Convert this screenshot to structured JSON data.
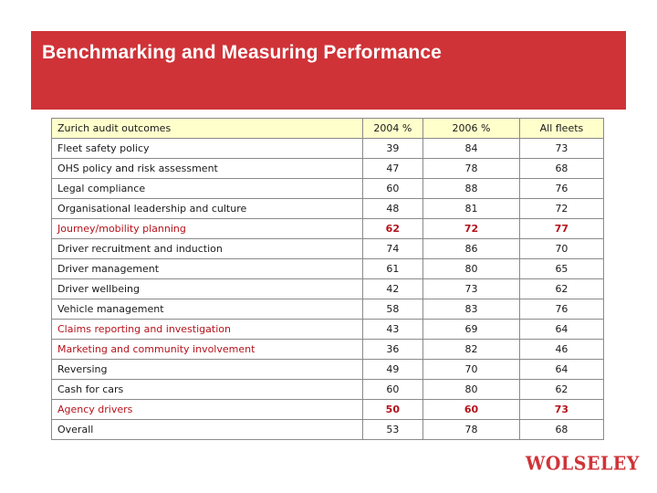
{
  "title": "Benchmarking and Measuring Performance",
  "table": {
    "headers": [
      "Zurich audit outcomes",
      "2004 %",
      "2006 %",
      "All fleets"
    ],
    "rows": [
      {
        "label": "Fleet safety policy",
        "v2004": "39",
        "v2006": "84",
        "all": "73",
        "style": "normal"
      },
      {
        "label": "OHS policy and risk assessment",
        "v2004": "47",
        "v2006": "78",
        "all": "68",
        "style": "normal"
      },
      {
        "label": "Legal compliance",
        "v2004": "60",
        "v2006": "88",
        "all": "76",
        "style": "normal"
      },
      {
        "label": "Organisational leadership and culture",
        "v2004": "48",
        "v2006": "81",
        "all": "72",
        "style": "normal"
      },
      {
        "label": "Journey/mobility planning",
        "v2004": "62",
        "v2006": "72",
        "all": "77",
        "style": "highlight"
      },
      {
        "label": "Driver recruitment and induction",
        "v2004": "74",
        "v2006": "86",
        "all": "70",
        "style": "normal"
      },
      {
        "label": "Driver management",
        "v2004": "61",
        "v2006": "80",
        "all": "65",
        "style": "normal"
      },
      {
        "label": "Driver wellbeing",
        "v2004": "42",
        "v2006": "73",
        "all": "62",
        "style": "normal"
      },
      {
        "label": "Vehicle management",
        "v2004": "58",
        "v2006": "83",
        "all": "76",
        "style": "normal"
      },
      {
        "label": "Claims reporting and investigation",
        "v2004": "43",
        "v2006": "69",
        "all": "64",
        "style": "red-label"
      },
      {
        "label": "Marketing and community involvement",
        "v2004": "36",
        "v2006": "82",
        "all": "46",
        "style": "red-label"
      },
      {
        "label": "Reversing",
        "v2004": "49",
        "v2006": "70",
        "all": "64",
        "style": "normal"
      },
      {
        "label": "Cash for cars",
        "v2004": "60",
        "v2006": "80",
        "all": "62",
        "style": "normal"
      },
      {
        "label": "Agency drivers",
        "v2004": "50",
        "v2006": "60",
        "all": "73",
        "style": "highlight"
      },
      {
        "label": "Overall",
        "v2004": "53",
        "v2006": "78",
        "all": "68",
        "style": "normal"
      }
    ]
  },
  "logo": "WOLSELEY",
  "colors": {
    "accent": "#cf3338",
    "header_bg": "#ffffcc",
    "highlight_text": "#b5121b"
  }
}
